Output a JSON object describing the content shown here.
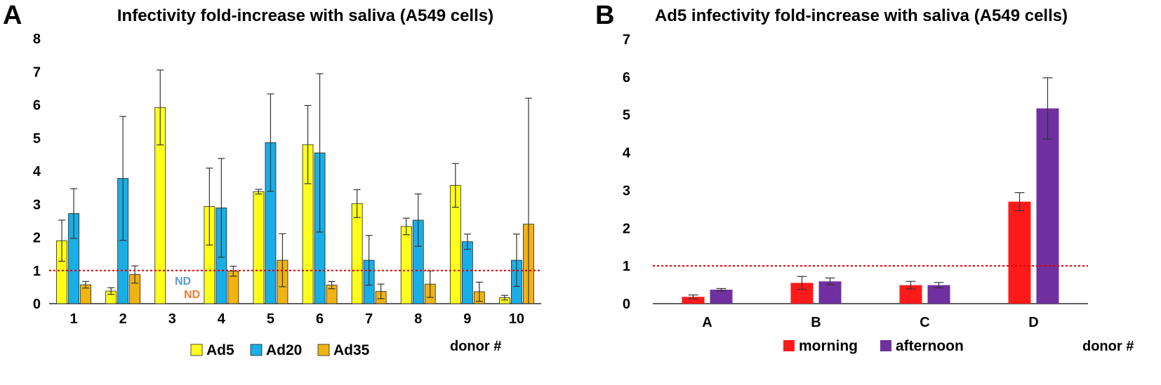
{
  "panels": {
    "A": {
      "letter": "A"
    },
    "B": {
      "letter": "B"
    }
  },
  "colors": {
    "Ad5": "#ffff1a",
    "Ad20": "#1aaee6",
    "Ad35": "#f0b411",
    "morning": "#ff1a1a",
    "afternoon": "#7030a0",
    "reference_line": "#e00000",
    "nd_ad20": "#5b9bd5",
    "nd_ad35": "#ed7d31"
  },
  "chart_data": [
    {
      "type": "bar",
      "title": "Infectivity fold-increase with saliva (A549 cells)",
      "xlabel": "donor #",
      "ylabel": "",
      "ylim": [
        0,
        8
      ],
      "yticks": [
        "0",
        "1",
        "2",
        "3",
        "4",
        "5",
        "6",
        "7",
        "8"
      ],
      "categories": [
        "1",
        "2",
        "3",
        "4",
        "5",
        "6",
        "7",
        "8",
        "9",
        "10"
      ],
      "series": [
        {
          "name": "Ad5",
          "values": [
            1.9,
            0.38,
            5.92,
            2.93,
            3.38,
            4.8,
            3.02,
            2.33,
            3.57,
            0.18
          ],
          "errors": [
            0.62,
            0.1,
            1.13,
            1.16,
            0.07,
            1.18,
            0.42,
            0.25,
            0.66,
            0.07
          ]
        },
        {
          "name": "Ad20",
          "values": [
            2.72,
            3.78,
            null,
            2.89,
            4.86,
            4.55,
            1.31,
            2.52,
            1.87,
            1.31
          ],
          "errors": [
            0.75,
            1.87,
            null,
            1.49,
            1.47,
            2.39,
            0.75,
            0.79,
            0.23,
            0.79
          ]
        },
        {
          "name": "Ad35",
          "values": [
            0.57,
            0.88,
            null,
            0.98,
            1.31,
            0.56,
            0.37,
            0.59,
            0.36,
            2.4
          ],
          "errors": [
            0.1,
            0.26,
            null,
            0.15,
            0.8,
            0.11,
            0.22,
            0.4,
            0.29,
            3.8
          ]
        }
      ],
      "reference_line": 1,
      "not_determined": {
        "category": "3",
        "labels": [
          "ND",
          "ND"
        ]
      },
      "legend": [
        "Ad5",
        "Ad20",
        "Ad35"
      ]
    },
    {
      "type": "bar",
      "title": "Ad5 infectivity fold-increase with saliva (A549 cells)",
      "xlabel": "donor #",
      "ylabel": "",
      "ylim": [
        0,
        7
      ],
      "yticks": [
        "0",
        "1",
        "2",
        "3",
        "4",
        "5",
        "6",
        "7"
      ],
      "categories": [
        "A",
        "B",
        "C",
        "D"
      ],
      "series": [
        {
          "name": "morning",
          "values": [
            0.18,
            0.55,
            0.49,
            2.7
          ],
          "errors": [
            0.05,
            0.17,
            0.1,
            0.24
          ]
        },
        {
          "name": "afternoon",
          "values": [
            0.37,
            0.59,
            0.49,
            5.17
          ],
          "errors": [
            0.03,
            0.09,
            0.07,
            0.81
          ]
        }
      ],
      "reference_line": 1,
      "legend": [
        "morning",
        "afternoon"
      ]
    }
  ]
}
